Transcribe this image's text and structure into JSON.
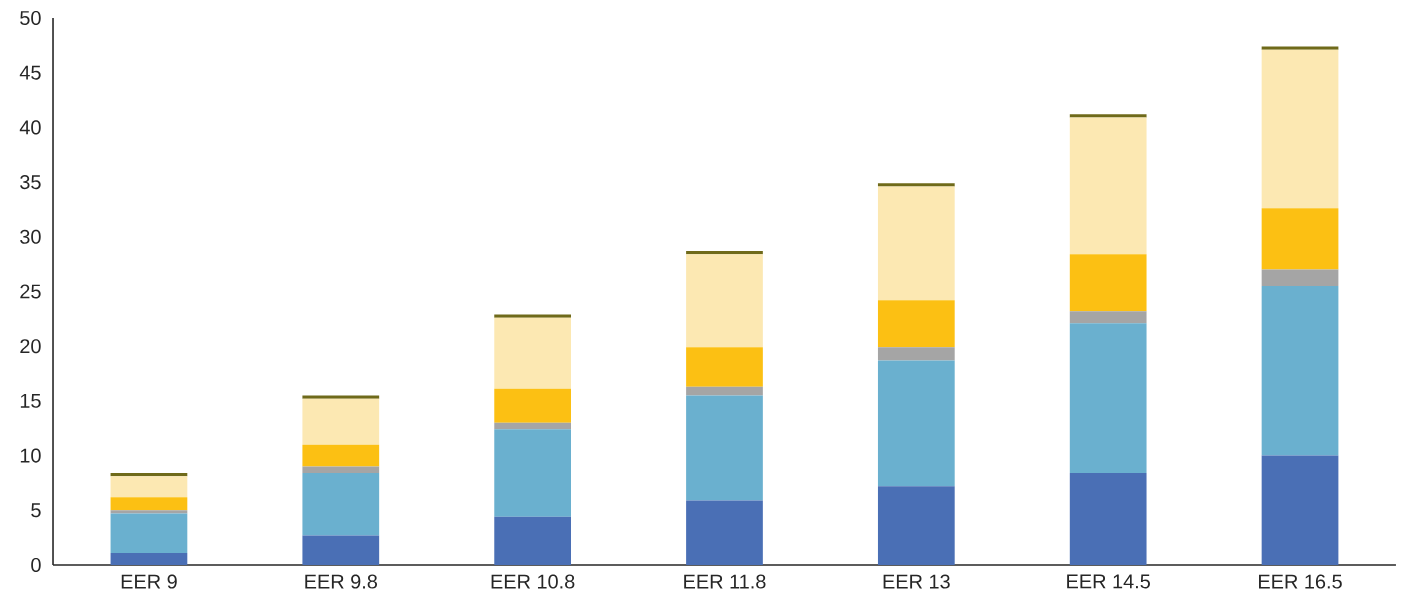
{
  "chart_data": {
    "type": "bar",
    "stacked": true,
    "categories": [
      "EER 9",
      "EER 9.8",
      "EER 10.8",
      "EER 11.8",
      "EER 13",
      "EER 14.5",
      "EER 16.5"
    ],
    "series": [
      {
        "color": "#4a6fb5",
        "values": [
          1.1,
          2.7,
          4.4,
          5.9,
          7.2,
          8.4,
          10.0
        ]
      },
      {
        "color": "#6ab0cf",
        "values": [
          3.6,
          5.7,
          8.0,
          9.6,
          11.5,
          13.7,
          15.5
        ]
      },
      {
        "color": "#a5a5a5",
        "values": [
          0.3,
          0.6,
          0.6,
          0.8,
          1.2,
          1.1,
          1.5
        ]
      },
      {
        "color": "#fcc013",
        "values": [
          1.2,
          2.0,
          3.1,
          3.6,
          4.3,
          5.2,
          5.6
        ]
      },
      {
        "color": "#fce8b2",
        "values": [
          1.9,
          4.2,
          6.5,
          8.5,
          10.4,
          12.5,
          14.5
        ]
      },
      {
        "color": "#6f6a1a",
        "values": [
          0.3,
          0.3,
          0.3,
          0.3,
          0.3,
          0.3,
          0.3
        ]
      }
    ],
    "ylim": [
      0,
      50
    ],
    "yticks": [
      0,
      5,
      10,
      15,
      20,
      25,
      30,
      35,
      40,
      45,
      50
    ]
  }
}
